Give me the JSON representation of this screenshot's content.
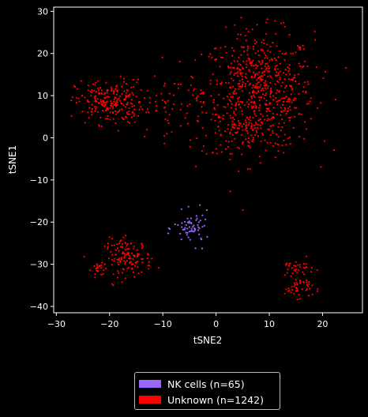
{
  "chart_data": {
    "type": "scatter",
    "xlabel": "tSNE2",
    "ylabel": "tSNE1",
    "xlim": [
      -30.5,
      27.5
    ],
    "ylim": [
      -41.5,
      31
    ],
    "xticks": [
      -30,
      -20,
      -10,
      0,
      10,
      20
    ],
    "yticks": [
      -40,
      -30,
      -20,
      -10,
      0,
      10,
      20,
      30
    ],
    "xtick_labels": [
      "−30",
      "−20",
      "−10",
      "0",
      "10",
      "20"
    ],
    "ytick_labels": [
      "−40",
      "−30",
      "−20",
      "−10",
      "0",
      "10",
      "20",
      "30"
    ],
    "background": "#000000",
    "series": [
      {
        "name": "NK cells (n=65)",
        "color": "#9966ff",
        "count": 65,
        "clusters": [
          {
            "cx": -4.5,
            "cy": -21.5,
            "sx": 1.7,
            "sy": 1.9,
            "n": 65
          }
        ]
      },
      {
        "name": "Unknown (n=1242)",
        "color": "#ff0000",
        "count": 1242,
        "clusters": [
          {
            "cx": 8,
            "cy": 11,
            "sx": 5.2,
            "sy": 7.0,
            "n": 640
          },
          {
            "cx": 5,
            "cy": 2,
            "sx": 4.0,
            "sy": 3.5,
            "n": 80
          },
          {
            "cx": -20,
            "cy": 8.5,
            "sx": 3.2,
            "sy": 2.6,
            "n": 230
          },
          {
            "cx": -10,
            "cy": 7,
            "sx": 2.2,
            "sy": 3.5,
            "n": 40
          },
          {
            "cx": -4,
            "cy": 12,
            "sx": 1.8,
            "sy": 4.0,
            "n": 15
          },
          {
            "cx": -16.5,
            "cy": -28.5,
            "sx": 2.2,
            "sy": 2.2,
            "n": 135
          },
          {
            "cx": -22,
            "cy": -31.2,
            "sx": 0.7,
            "sy": 0.9,
            "n": 22
          },
          {
            "cx": 15.5,
            "cy": -35.5,
            "sx": 1.3,
            "sy": 1.2,
            "n": 45
          },
          {
            "cx": 15,
            "cy": -31,
            "sx": 1.7,
            "sy": 1.1,
            "n": 35
          }
        ]
      }
    ],
    "legend_position": "bottom-center"
  }
}
